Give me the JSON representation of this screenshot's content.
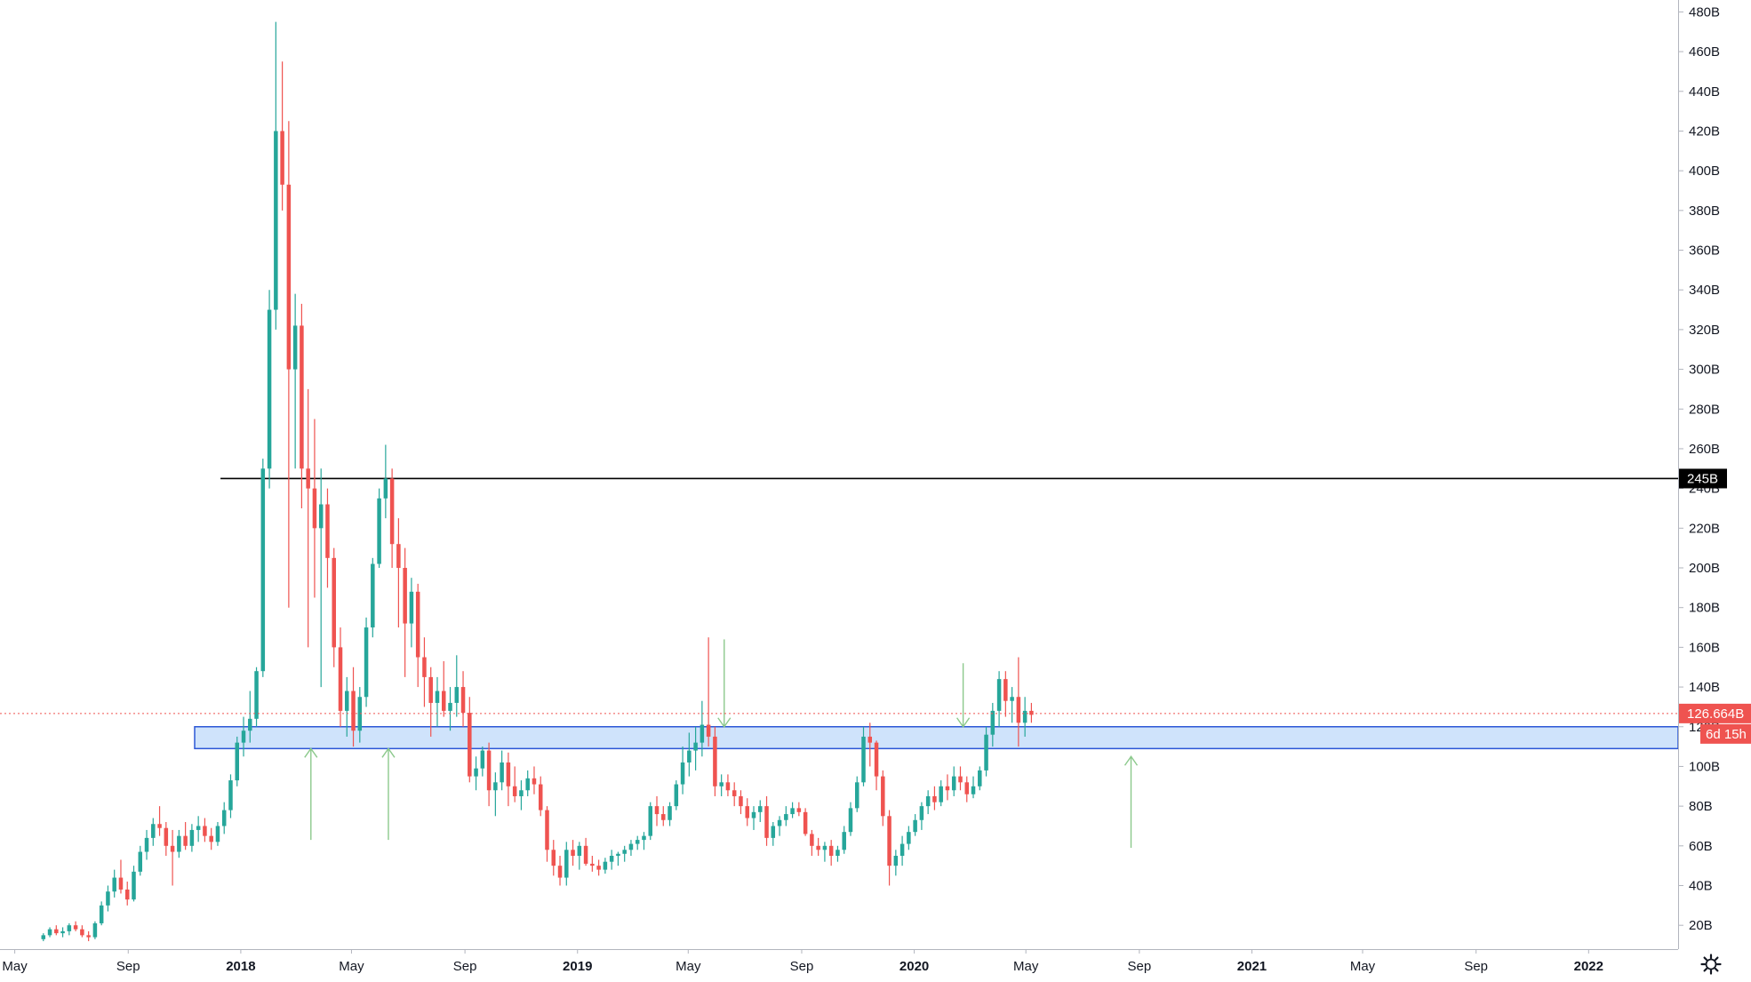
{
  "chart_data": {
    "type": "candlestick",
    "title": "",
    "xlabel": "",
    "ylabel": "",
    "y_range": [
      8,
      486
    ],
    "x_range": [
      "2017-04-15",
      "2022-04-08"
    ],
    "y_tick_labels": [
      "480B",
      "460B",
      "440B",
      "420B",
      "400B",
      "380B",
      "360B",
      "340B",
      "320B",
      "300B",
      "280B",
      "260B",
      "240B",
      "220B",
      "200B",
      "180B",
      "160B",
      "140B",
      "120B",
      "100B",
      "80B",
      "60B",
      "40B",
      "20B"
    ],
    "y_tick_values": [
      480,
      460,
      440,
      420,
      400,
      380,
      360,
      340,
      320,
      300,
      280,
      260,
      240,
      220,
      200,
      180,
      160,
      140,
      120,
      100,
      80,
      60,
      40,
      20
    ],
    "x_ticks": [
      {
        "label": "May",
        "date": "2017-05-01",
        "bold": false
      },
      {
        "label": "Sep",
        "date": "2017-09-01",
        "bold": false
      },
      {
        "label": "2018",
        "date": "2018-01-01",
        "bold": true
      },
      {
        "label": "May",
        "date": "2018-05-01",
        "bold": false
      },
      {
        "label": "Sep",
        "date": "2018-09-01",
        "bold": false
      },
      {
        "label": "2019",
        "date": "2019-01-01",
        "bold": true
      },
      {
        "label": "May",
        "date": "2019-05-01",
        "bold": false
      },
      {
        "label": "Sep",
        "date": "2019-09-01",
        "bold": false
      },
      {
        "label": "2020",
        "date": "2020-01-01",
        "bold": true
      },
      {
        "label": "May",
        "date": "2020-05-01",
        "bold": false
      },
      {
        "label": "Sep",
        "date": "2020-09-01",
        "bold": false
      },
      {
        "label": "2021",
        "date": "2021-01-01",
        "bold": true
      },
      {
        "label": "May",
        "date": "2021-05-01",
        "bold": false
      },
      {
        "label": "Sep",
        "date": "2021-09-01",
        "bold": false
      },
      {
        "label": "2022",
        "date": "2022-01-01",
        "bold": true
      }
    ],
    "first_candle_date": "2017-06-01",
    "candle_interval_days": 7,
    "ohlc": [
      [
        13,
        16,
        12,
        15
      ],
      [
        15,
        19,
        14,
        18
      ],
      [
        18,
        20,
        15,
        16
      ],
      [
        16,
        19,
        14,
        17
      ],
      [
        17,
        21,
        15,
        20
      ],
      [
        20,
        22,
        17,
        18
      ],
      [
        18,
        20,
        14,
        15
      ],
      [
        15,
        17,
        12,
        14
      ],
      [
        14,
        22,
        13,
        21
      ],
      [
        21,
        32,
        20,
        30
      ],
      [
        30,
        40,
        27,
        37
      ],
      [
        37,
        48,
        34,
        44
      ],
      [
        44,
        53,
        36,
        38
      ],
      [
        38,
        42,
        30,
        33
      ],
      [
        33,
        50,
        32,
        47
      ],
      [
        47,
        60,
        45,
        57
      ],
      [
        57,
        68,
        53,
        64
      ],
      [
        64,
        74,
        60,
        71
      ],
      [
        71,
        80,
        65,
        69
      ],
      [
        69,
        72,
        55,
        60
      ],
      [
        60,
        68,
        40,
        57
      ],
      [
        57,
        68,
        54,
        65
      ],
      [
        65,
        72,
        58,
        60
      ],
      [
        60,
        71,
        57,
        68
      ],
      [
        68,
        75,
        62,
        70
      ],
      [
        70,
        74,
        62,
        65
      ],
      [
        65,
        69,
        58,
        62
      ],
      [
        62,
        72,
        60,
        70
      ],
      [
        70,
        82,
        66,
        78
      ],
      [
        78,
        96,
        74,
        93
      ],
      [
        93,
        115,
        90,
        112
      ],
      [
        112,
        125,
        105,
        118
      ],
      [
        118,
        138,
        112,
        124
      ],
      [
        124,
        150,
        120,
        148
      ],
      [
        148,
        255,
        145,
        250
      ],
      [
        250,
        340,
        240,
        330
      ],
      [
        330,
        475,
        320,
        420
      ],
      [
        420,
        455,
        380,
        393
      ],
      [
        393,
        425,
        180,
        300
      ],
      [
        300,
        338,
        250,
        322
      ],
      [
        322,
        333,
        230,
        250
      ],
      [
        250,
        290,
        160,
        240
      ],
      [
        240,
        275,
        185,
        220
      ],
      [
        220,
        250,
        140,
        232
      ],
      [
        232,
        240,
        190,
        205
      ],
      [
        205,
        210,
        150,
        160
      ],
      [
        160,
        170,
        120,
        128
      ],
      [
        128,
        145,
        115,
        138
      ],
      [
        138,
        150,
        110,
        118
      ],
      [
        118,
        140,
        112,
        135
      ],
      [
        135,
        175,
        130,
        170
      ],
      [
        170,
        205,
        165,
        202
      ],
      [
        202,
        240,
        200,
        235
      ],
      [
        235,
        262,
        225,
        245
      ],
      [
        245,
        250,
        200,
        212
      ],
      [
        212,
        225,
        170,
        200
      ],
      [
        200,
        210,
        145,
        172
      ],
      [
        172,
        195,
        160,
        188
      ],
      [
        188,
        192,
        140,
        155
      ],
      [
        155,
        165,
        130,
        145
      ],
      [
        145,
        150,
        115,
        132
      ],
      [
        132,
        145,
        120,
        138
      ],
      [
        138,
        153,
        125,
        128
      ],
      [
        128,
        140,
        118,
        132
      ],
      [
        132,
        156,
        125,
        140
      ],
      [
        140,
        148,
        120,
        127
      ],
      [
        127,
        135,
        92,
        95
      ],
      [
        95,
        105,
        88,
        99
      ],
      [
        99,
        110,
        95,
        108
      ],
      [
        108,
        112,
        80,
        88
      ],
      [
        88,
        97,
        75,
        92
      ],
      [
        92,
        108,
        88,
        102
      ],
      [
        102,
        107,
        80,
        90
      ],
      [
        90,
        100,
        82,
        85
      ],
      [
        85,
        93,
        78,
        88
      ],
      [
        88,
        98,
        85,
        94
      ],
      [
        94,
        100,
        86,
        91
      ],
      [
        91,
        95,
        75,
        78
      ],
      [
        78,
        80,
        52,
        58
      ],
      [
        58,
        63,
        45,
        50
      ],
      [
        50,
        55,
        40,
        44
      ],
      [
        44,
        62,
        40,
        58
      ],
      [
        58,
        63,
        50,
        55
      ],
      [
        55,
        62,
        48,
        60
      ],
      [
        60,
        64,
        50,
        51
      ],
      [
        51,
        55,
        47,
        50
      ],
      [
        50,
        53,
        45,
        48
      ],
      [
        48,
        54,
        46,
        52
      ],
      [
        52,
        58,
        48,
        55
      ],
      [
        55,
        57,
        50,
        56
      ],
      [
        56,
        60,
        52,
        58
      ],
      [
        58,
        63,
        55,
        61
      ],
      [
        61,
        65,
        58,
        63
      ],
      [
        63,
        67,
        58,
        65
      ],
      [
        65,
        82,
        63,
        80
      ],
      [
        80,
        85,
        70,
        76
      ],
      [
        76,
        80,
        70,
        73
      ],
      [
        73,
        82,
        70,
        80
      ],
      [
        80,
        93,
        78,
        91
      ],
      [
        91,
        110,
        86,
        102
      ],
      [
        102,
        117,
        95,
        108
      ],
      [
        108,
        120,
        98,
        112
      ],
      [
        112,
        133,
        105,
        121
      ],
      [
        121,
        165,
        110,
        115
      ],
      [
        115,
        120,
        85,
        90
      ],
      [
        90,
        96,
        85,
        92
      ],
      [
        92,
        96,
        85,
        88
      ],
      [
        88,
        92,
        80,
        85
      ],
      [
        85,
        88,
        76,
        80
      ],
      [
        80,
        84,
        70,
        74
      ],
      [
        74,
        80,
        68,
        77
      ],
      [
        77,
        83,
        72,
        80
      ],
      [
        80,
        85,
        60,
        64
      ],
      [
        64,
        72,
        60,
        70
      ],
      [
        70,
        75,
        65,
        73
      ],
      [
        73,
        80,
        70,
        76
      ],
      [
        76,
        82,
        74,
        79
      ],
      [
        79,
        82,
        75,
        77
      ],
      [
        77,
        79,
        65,
        66
      ],
      [
        66,
        68,
        55,
        60
      ],
      [
        60,
        64,
        55,
        58
      ],
      [
        58,
        62,
        52,
        60
      ],
      [
        60,
        63,
        50,
        55
      ],
      [
        55,
        60,
        52,
        58
      ],
      [
        58,
        70,
        56,
        67
      ],
      [
        67,
        82,
        65,
        79
      ],
      [
        79,
        95,
        77,
        92
      ],
      [
        92,
        120,
        90,
        115
      ],
      [
        115,
        122,
        100,
        112
      ],
      [
        112,
        113,
        88,
        95
      ],
      [
        95,
        98,
        70,
        75
      ],
      [
        75,
        78,
        40,
        50
      ],
      [
        50,
        58,
        45,
        55
      ],
      [
        55,
        65,
        50,
        61
      ],
      [
        61,
        70,
        58,
        67
      ],
      [
        67,
        76,
        65,
        73
      ],
      [
        73,
        82,
        68,
        80
      ],
      [
        80,
        88,
        76,
        85
      ],
      [
        85,
        90,
        78,
        82
      ],
      [
        82,
        93,
        80,
        90
      ],
      [
        90,
        96,
        83,
        88
      ],
      [
        88,
        100,
        85,
        95
      ],
      [
        95,
        100,
        88,
        92
      ],
      [
        92,
        95,
        82,
        86
      ],
      [
        86,
        95,
        84,
        90
      ],
      [
        90,
        100,
        88,
        98
      ],
      [
        98,
        120,
        95,
        116
      ],
      [
        116,
        132,
        110,
        128
      ],
      [
        128,
        148,
        120,
        144
      ],
      [
        144,
        148,
        125,
        133
      ],
      [
        133,
        140,
        122,
        135
      ],
      [
        135,
        155,
        110,
        122
      ],
      [
        122,
        135,
        115,
        128
      ],
      [
        128,
        132,
        122,
        126
      ]
    ],
    "horizontal_lines": [
      {
        "value": 245,
        "start_date": "2017-12-10",
        "color": "#000000",
        "label": "245B"
      }
    ],
    "zones": [
      {
        "low": 109,
        "high": 120,
        "start_date": "2017-11-12",
        "fill": "#cfe3fb",
        "border": "#2c57d6"
      }
    ],
    "arrows": [
      {
        "date": "2018-03-18",
        "from": 63,
        "to": 109,
        "direction": "up"
      },
      {
        "date": "2018-06-10",
        "from": 63,
        "to": 109,
        "direction": "up"
      },
      {
        "date": "2019-06-09",
        "from": 164,
        "to": 120,
        "direction": "down"
      },
      {
        "date": "2020-02-23",
        "from": 152,
        "to": 120,
        "direction": "down"
      },
      {
        "date": "2020-08-23",
        "from": 59,
        "to": 105,
        "direction": "up"
      }
    ],
    "last_price": {
      "value": 126.664,
      "label": "126.664B",
      "countdown": "6d 15h"
    },
    "colors": {
      "up": "#26a69a",
      "down": "#ef5350",
      "arrow": "#8cc98c",
      "price_tag": "#ef5350",
      "level_tag": "#000000",
      "axis": "#b2b5be",
      "text": "#131722"
    }
  },
  "toolbar": {
    "settings_icon": "gear-icon"
  }
}
